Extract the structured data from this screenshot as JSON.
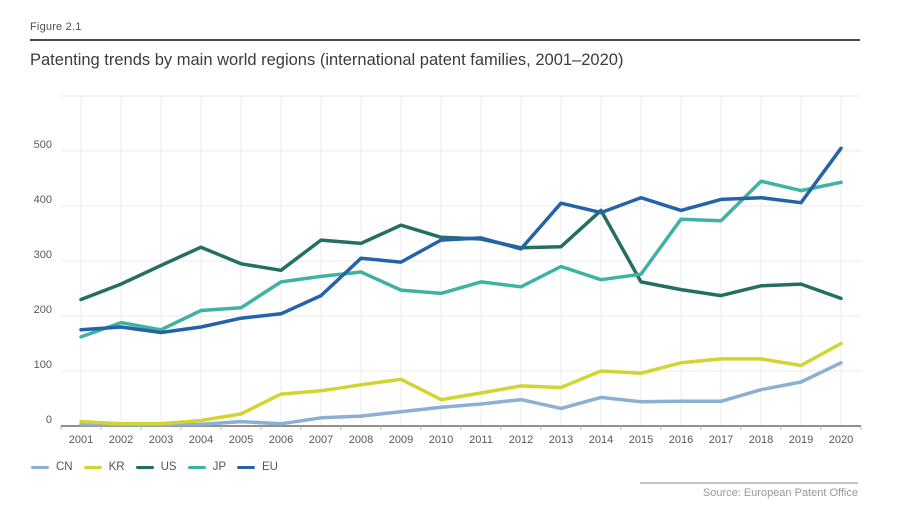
{
  "figure_label": "Figure 2.1",
  "source": "Source: European Patent Office",
  "chart_data": {
    "type": "line",
    "title": "Patenting trends by main world regions (international patent families, 2001–2020)",
    "xlabel": "",
    "ylabel": "",
    "x": [
      2001,
      2002,
      2003,
      2004,
      2005,
      2006,
      2007,
      2008,
      2009,
      2010,
      2011,
      2012,
      2013,
      2014,
      2015,
      2016,
      2017,
      2018,
      2019,
      2020
    ],
    "yticks": [
      0,
      100,
      200,
      300,
      400,
      500
    ],
    "ylim": [
      0,
      550
    ],
    "grid": true,
    "legend_position": "bottom-left",
    "axis_color": "#8f8f8f",
    "grid_color": "#ebebeb",
    "tick_label_color": "#58595b",
    "series": [
      {
        "name": "CN",
        "color": "#8cafd4",
        "values": [
          3,
          2,
          2,
          3,
          8,
          4,
          15,
          18,
          26,
          34,
          40,
          48,
          32,
          52,
          44,
          45,
          45,
          66,
          80,
          115
        ]
      },
      {
        "name": "KR",
        "color": "#d3d430",
        "values": [
          8,
          4,
          4,
          10,
          22,
          58,
          64,
          75,
          85,
          48,
          60,
          73,
          70,
          100,
          96,
          115,
          122,
          122,
          110,
          150
        ]
      },
      {
        "name": "US",
        "color": "#256f60",
        "values": [
          230,
          258,
          292,
          325,
          295,
          283,
          338,
          332,
          365,
          343,
          340,
          324,
          326,
          392,
          262,
          248,
          237,
          255,
          258,
          232
        ]
      },
      {
        "name": "JP",
        "color": "#3fb2a4",
        "values": [
          162,
          188,
          175,
          210,
          215,
          262,
          272,
          280,
          247,
          241,
          262,
          253,
          290,
          266,
          276,
          376,
          373,
          445,
          428,
          443
        ]
      },
      {
        "name": "EU",
        "color": "#2563a8",
        "values": [
          175,
          180,
          170,
          180,
          196,
          204,
          237,
          305,
          298,
          338,
          342,
          322,
          405,
          388,
          415,
          392,
          412,
          415,
          406,
          505
        ]
      }
    ]
  }
}
